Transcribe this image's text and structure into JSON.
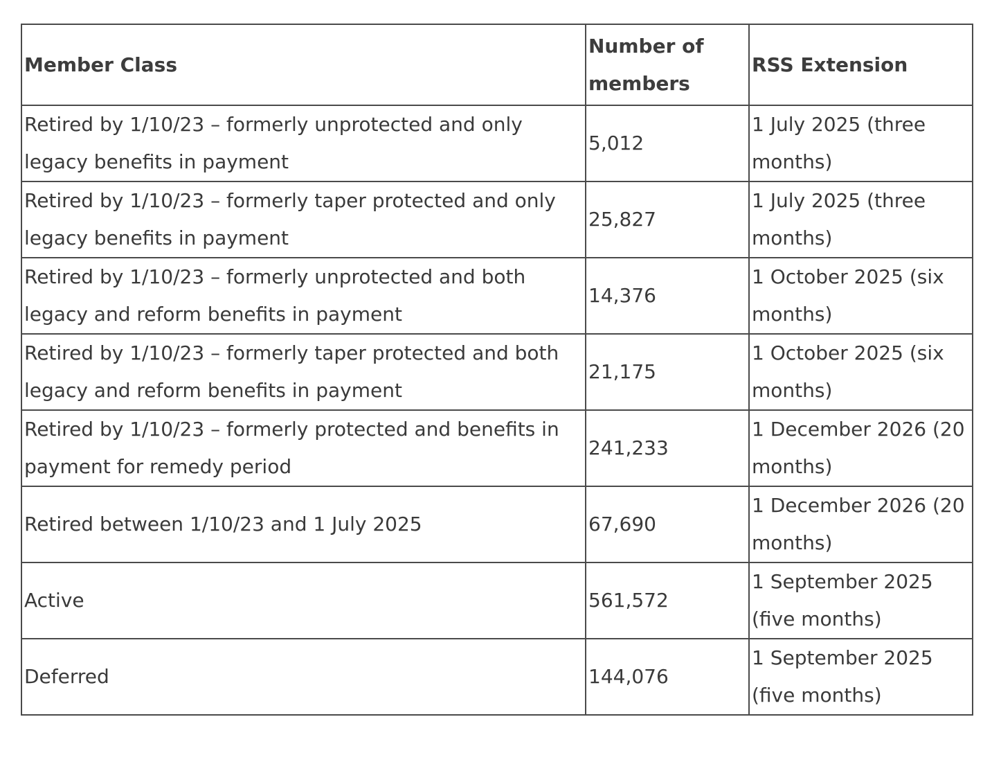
{
  "table": {
    "headers": [
      "Member Class",
      "Number of members",
      "RSS Extension"
    ],
    "rows": [
      {
        "member_class": "Retired by 1/10/23 – formerly unprotected and only legacy benefits in payment",
        "members": "5,012",
        "extension": "1 July 2025 (three months)"
      },
      {
        "member_class": "Retired by 1/10/23 – formerly taper protected and only legacy benefits in payment",
        "members": "25,827",
        "extension": "1 July 2025 (three months)"
      },
      {
        "member_class": "Retired by 1/10/23 – formerly unprotected and both legacy and reform benefits in payment",
        "members": "14,376",
        "extension": "1 October 2025 (six months)"
      },
      {
        "member_class": "Retired by 1/10/23 – formerly taper protected and both legacy and reform benefits in payment",
        "members": "21,175",
        "extension": "1 October 2025 (six months)"
      },
      {
        "member_class": "Retired by 1/10/23 – formerly protected and benefits in payment for remedy period",
        "members": "241,233",
        "extension": "1 December 2026 (20 months)"
      },
      {
        "member_class": "Retired between 1/10/23 and 1 July 2025",
        "members": "67,690",
        "extension": "1 December 2026 (20 months)"
      },
      {
        "member_class": "Active",
        "members": "561,572",
        "extension": "1 September 2025 (five months)"
      },
      {
        "member_class": "Deferred",
        "members": "144,076",
        "extension": "1 September 2025 (five months)"
      }
    ]
  }
}
